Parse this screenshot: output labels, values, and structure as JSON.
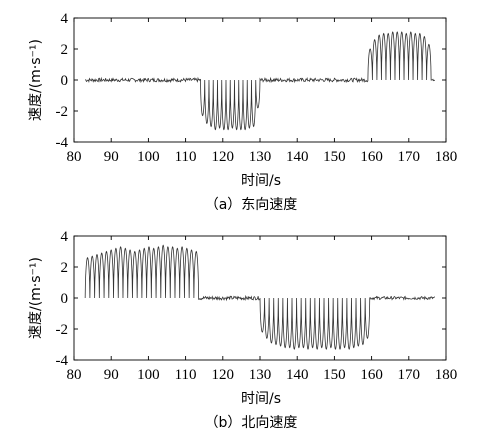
{
  "chart_data": [
    {
      "type": "line",
      "caption": "（a）东向速度",
      "xlabel": "时间/s",
      "ylabel": "速度/(m·s⁻¹)",
      "xlim": [
        80,
        180
      ],
      "ylim": [
        -4,
        4
      ],
      "xticks": [
        80,
        90,
        100,
        110,
        120,
        130,
        140,
        150,
        160,
        170,
        180
      ],
      "yticks": [
        4,
        2,
        0,
        -2,
        -4
      ],
      "grid": false,
      "series": [
        {
          "segments": [
            {
              "start": 83,
              "end": 114,
              "level": 0,
              "oscillating": false,
              "noise": 0.12
            },
            {
              "start": 114,
              "end": 130,
              "level": 0,
              "oscillating": true,
              "sign": -1,
              "cycles": 14,
              "peaks": [
                -2.3,
                -2.8,
                -3.0,
                -3.2,
                -3.1,
                -3.2,
                -3.2,
                -3.1,
                -3.2,
                -3.2,
                -3.2,
                -3.1,
                -3.0,
                -1.8
              ]
            },
            {
              "start": 130,
              "end": 159,
              "level": 0,
              "oscillating": false,
              "noise": 0.12
            },
            {
              "start": 159,
              "end": 176,
              "level": 0,
              "oscillating": true,
              "sign": 1,
              "cycles": 14,
              "peaks": [
                2.0,
                2.6,
                2.9,
                3.0,
                3.0,
                3.1,
                3.1,
                3.1,
                3.0,
                3.1,
                3.0,
                3.0,
                2.8,
                2.3
              ]
            },
            {
              "start": 176,
              "end": 177,
              "level": 0,
              "oscillating": false,
              "noise": 0.05
            }
          ]
        }
      ]
    },
    {
      "type": "line",
      "caption": "（b）北向速度",
      "xlabel": "时间/s",
      "ylabel": "速度/(m·s⁻¹)",
      "xlim": [
        80,
        180
      ],
      "ylim": [
        -4,
        4
      ],
      "xticks": [
        80,
        90,
        100,
        110,
        120,
        130,
        140,
        150,
        160,
        170,
        180
      ],
      "yticks": [
        4,
        2,
        0,
        -2,
        -4
      ],
      "grid": false,
      "series": [
        {
          "segments": [
            {
              "start": 83,
              "end": 113.5,
              "level": 0,
              "oscillating": true,
              "sign": 1,
              "cycles": 24,
              "peaks": [
                2.6,
                2.7,
                2.8,
                2.9,
                3.0,
                3.1,
                3.2,
                3.3,
                3.2,
                3.1,
                3.0,
                3.1,
                3.2,
                3.3,
                3.2,
                3.3,
                3.4,
                3.3,
                3.3,
                3.2,
                3.3,
                3.2,
                3.1,
                3.0
              ]
            },
            {
              "start": 113.5,
              "end": 130,
              "level": 0,
              "oscillating": false,
              "noise": 0.12
            },
            {
              "start": 130,
              "end": 159.5,
              "level": 0,
              "oscillating": true,
              "sign": -1,
              "cycles": 24,
              "peaks": [
                -2.2,
                -2.6,
                -2.9,
                -3.0,
                -3.1,
                -3.2,
                -3.2,
                -3.3,
                -3.2,
                -3.2,
                -3.3,
                -3.2,
                -3.3,
                -3.2,
                -3.3,
                -3.2,
                -3.3,
                -3.3,
                -3.2,
                -3.3,
                -3.2,
                -3.1,
                -3.0,
                -2.6
              ]
            },
            {
              "start": 159.5,
              "end": 177,
              "level": 0,
              "oscillating": false,
              "noise": 0.1
            }
          ]
        }
      ]
    }
  ]
}
